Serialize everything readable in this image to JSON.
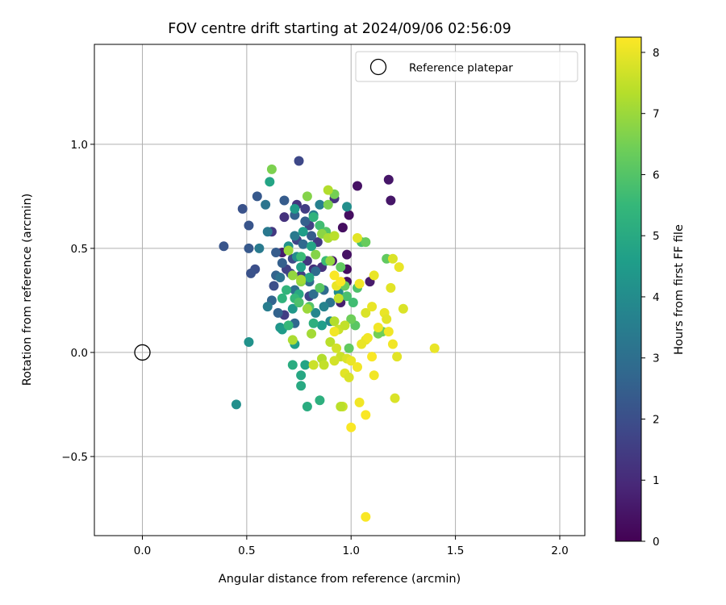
{
  "chart_data": {
    "type": "scatter",
    "title": "FOV centre drift starting at 2024/09/06 02:56:09",
    "xlabel": "Angular distance from reference (arcmin)",
    "ylabel": "Rotation from reference (arcmin)",
    "xlim": [
      -0.23,
      2.12
    ],
    "ylim": [
      -0.88,
      1.48
    ],
    "xticks": [
      "0.0",
      "0.5",
      "1.0",
      "1.5",
      "2.0"
    ],
    "xtick_values": [
      0.0,
      0.5,
      1.0,
      1.5,
      2.0
    ],
    "yticks": [
      "−0.5",
      "0.0",
      "0.5",
      "1.0"
    ],
    "ytick_values": [
      -0.5,
      0.0,
      0.5,
      1.0
    ],
    "grid": true,
    "legend": {
      "position": "top-right",
      "entries": [
        "Reference platepar"
      ]
    },
    "reference_point": {
      "x": 0.0,
      "y": 0.0,
      "marker": "open-circle"
    },
    "colorbar": {
      "label": "Hours from first FF file",
      "colormap": "viridis",
      "range": [
        0,
        8.25
      ],
      "ticks": [
        "0",
        "1",
        "2",
        "3",
        "4",
        "5",
        "6",
        "7",
        "8"
      ],
      "tick_values": [
        0,
        1,
        2,
        3,
        4,
        5,
        6,
        7,
        8
      ]
    },
    "point_fields": [
      "x",
      "y",
      "hours"
    ],
    "points": [
      [
        0.96,
        0.6,
        0.3
      ],
      [
        1.03,
        0.8,
        0.4
      ],
      [
        0.99,
        0.66,
        0.3
      ],
      [
        1.18,
        0.83,
        0.5
      ],
      [
        1.19,
        0.73,
        0.5
      ],
      [
        0.98,
        0.47,
        0.4
      ],
      [
        0.98,
        0.4,
        0.3
      ],
      [
        0.98,
        0.34,
        0.4
      ],
      [
        1.09,
        0.34,
        0.6
      ],
      [
        0.67,
        0.48,
        0.6
      ],
      [
        0.95,
        0.24,
        0.7
      ],
      [
        0.91,
        0.44,
        0.6
      ],
      [
        0.68,
        0.65,
        1.2
      ],
      [
        0.62,
        0.58,
        1.4
      ],
      [
        0.74,
        0.71,
        1.3
      ],
      [
        0.78,
        0.69,
        1.5
      ],
      [
        0.92,
        0.74,
        1.2
      ],
      [
        0.82,
        0.4,
        1.1
      ],
      [
        0.79,
        0.44,
        1.3
      ],
      [
        0.86,
        0.41,
        1.2
      ],
      [
        0.75,
        0.92,
        1.8
      ],
      [
        0.8,
        0.61,
        1.6
      ],
      [
        0.84,
        0.53,
        1.4
      ],
      [
        0.76,
        0.37,
        1.6
      ],
      [
        0.8,
        0.27,
        1.7
      ],
      [
        0.71,
        0.38,
        1.8
      ],
      [
        0.72,
        0.45,
        1.9
      ],
      [
        0.74,
        0.54,
        1.7
      ],
      [
        0.69,
        0.4,
        1.6
      ],
      [
        0.68,
        0.18,
        1.5
      ],
      [
        0.63,
        0.32,
        2.0
      ],
      [
        0.54,
        0.4,
        2.0
      ],
      [
        0.52,
        0.38,
        2.1
      ],
      [
        0.48,
        0.69,
        2.1
      ],
      [
        0.51,
        0.61,
        2.2
      ],
      [
        0.39,
        0.51,
        2.2
      ],
      [
        0.51,
        0.5,
        2.3
      ],
      [
        0.55,
        0.75,
        2.3
      ],
      [
        0.68,
        0.73,
        2.4
      ],
      [
        0.64,
        0.48,
        2.4
      ],
      [
        0.67,
        0.43,
        2.5
      ],
      [
        0.64,
        0.37,
        2.6
      ],
      [
        0.65,
        0.19,
        2.6
      ],
      [
        0.62,
        0.25,
        2.7
      ],
      [
        0.73,
        0.14,
        2.8
      ],
      [
        0.78,
        0.63,
        2.5
      ],
      [
        0.81,
        0.56,
        2.4
      ],
      [
        0.73,
        0.66,
        2.6
      ],
      [
        0.77,
        0.52,
        2.8
      ],
      [
        0.83,
        0.39,
        2.9
      ],
      [
        0.8,
        0.34,
        2.9
      ],
      [
        0.73,
        0.3,
        3.0
      ],
      [
        0.75,
        0.24,
        3.1
      ],
      [
        0.82,
        0.28,
        3.0
      ],
      [
        0.87,
        0.3,
        2.9
      ],
      [
        0.9,
        0.24,
        3.2
      ],
      [
        0.66,
        0.36,
        3.1
      ],
      [
        0.6,
        0.58,
        3.3
      ],
      [
        0.59,
        0.71,
        3.2
      ],
      [
        0.56,
        0.5,
        3.4
      ],
      [
        0.6,
        0.22,
        3.5
      ],
      [
        0.73,
        0.56,
        3.4
      ],
      [
        0.85,
        0.71,
        3.6
      ],
      [
        0.82,
        0.66,
        3.5
      ],
      [
        0.87,
        0.22,
        3.7
      ],
      [
        0.83,
        0.19,
        3.8
      ],
      [
        0.9,
        0.15,
        3.9
      ],
      [
        0.94,
        0.29,
        4.0
      ],
      [
        0.98,
        0.7,
        4.1
      ],
      [
        0.74,
        0.46,
        4.0
      ],
      [
        0.7,
        0.51,
        4.2
      ],
      [
        0.72,
        0.21,
        4.4
      ],
      [
        0.66,
        0.12,
        4.3
      ],
      [
        0.67,
        0.11,
        4.5
      ],
      [
        0.73,
        0.04,
        4.6
      ],
      [
        0.51,
        0.05,
        4.2
      ],
      [
        0.45,
        -0.25,
        4.1
      ],
      [
        0.73,
        0.69,
        4.5
      ],
      [
        0.77,
        0.58,
        4.6
      ],
      [
        0.76,
        0.41,
        4.7
      ],
      [
        0.81,
        0.51,
        4.8
      ],
      [
        0.8,
        0.36,
        4.9
      ],
      [
        0.86,
        0.13,
        4.6
      ],
      [
        0.78,
        -0.06,
        4.8
      ],
      [
        0.76,
        -0.11,
        4.9
      ],
      [
        0.72,
        -0.06,
        5.1
      ],
      [
        0.76,
        -0.16,
        5.0
      ],
      [
        0.79,
        -0.26,
        5.1
      ],
      [
        0.85,
        -0.23,
        5.2
      ],
      [
        0.61,
        0.82,
        4.8
      ],
      [
        0.75,
        0.28,
        5.0
      ],
      [
        0.82,
        0.14,
        5.2
      ],
      [
        0.82,
        0.65,
        5.3
      ],
      [
        0.67,
        0.26,
        5.3
      ],
      [
        0.69,
        0.3,
        5.4
      ],
      [
        0.7,
        0.13,
        5.5
      ],
      [
        0.73,
        0.26,
        5.5
      ],
      [
        0.76,
        0.46,
        5.6
      ],
      [
        0.85,
        0.61,
        5.7
      ],
      [
        0.88,
        0.44,
        5.6
      ],
      [
        0.98,
        0.27,
        5.8
      ],
      [
        1.01,
        0.24,
        5.7
      ],
      [
        1.03,
        0.31,
        5.9
      ],
      [
        1.05,
        0.53,
        5.8
      ],
      [
        0.75,
        0.24,
        5.9
      ],
      [
        0.8,
        0.22,
        6.0
      ],
      [
        0.85,
        0.31,
        6.1
      ],
      [
        0.88,
        0.58,
        6.0
      ],
      [
        0.95,
        0.41,
        6.2
      ],
      [
        0.97,
        0.32,
        6.3
      ],
      [
        1.02,
        0.13,
        6.1
      ],
      [
        0.99,
        0.02,
        6.2
      ],
      [
        1.0,
        0.16,
        6.4
      ],
      [
        1.07,
        0.53,
        6.3
      ],
      [
        1.13,
        0.09,
        6.5
      ],
      [
        1.15,
        0.1,
        6.4
      ],
      [
        1.17,
        0.45,
        6.2
      ],
      [
        0.62,
        0.88,
        6.6
      ],
      [
        0.79,
        0.75,
        6.7
      ],
      [
        0.89,
        0.71,
        6.6
      ],
      [
        0.92,
        0.76,
        6.5
      ],
      [
        0.86,
        0.57,
        6.8
      ],
      [
        0.9,
        0.44,
        6.9
      ],
      [
        0.83,
        0.47,
        6.7
      ],
      [
        0.76,
        0.34,
        6.8
      ],
      [
        0.72,
        0.37,
        6.9
      ],
      [
        0.7,
        0.49,
        7.0
      ],
      [
        0.79,
        0.21,
        7.0
      ],
      [
        0.81,
        0.09,
        7.1
      ],
      [
        0.72,
        0.06,
        7.2
      ],
      [
        0.76,
        0.35,
        7.1
      ],
      [
        0.89,
        0.78,
        7.3
      ],
      [
        0.89,
        0.55,
        7.2
      ],
      [
        0.92,
        0.56,
        7.4
      ],
      [
        0.94,
        0.26,
        7.5
      ],
      [
        0.92,
        0.15,
        7.3
      ],
      [
        0.94,
        0.11,
        7.6
      ],
      [
        0.97,
        0.13,
        7.5
      ],
      [
        0.9,
        0.05,
        7.4
      ],
      [
        0.93,
        0.02,
        7.7
      ],
      [
        0.95,
        -0.02,
        7.6
      ],
      [
        0.98,
        -0.03,
        7.8
      ],
      [
        0.92,
        -0.04,
        7.7
      ],
      [
        0.97,
        -0.1,
        7.9
      ],
      [
        0.99,
        -0.12,
        7.8
      ],
      [
        0.96,
        -0.26,
        7.6
      ],
      [
        0.95,
        -0.26,
        7.4
      ],
      [
        0.86,
        -0.03,
        7.3
      ],
      [
        0.87,
        -0.06,
        7.5
      ],
      [
        0.82,
        -0.06,
        7.6
      ],
      [
        1.03,
        0.55,
        7.9
      ],
      [
        1.07,
        0.19,
        7.8
      ],
      [
        1.1,
        0.22,
        8.0
      ],
      [
        1.11,
        0.37,
        8.0
      ],
      [
        1.13,
        0.12,
        8.1
      ],
      [
        1.16,
        0.19,
        8.0
      ],
      [
        1.17,
        0.16,
        7.9
      ],
      [
        1.18,
        0.1,
        8.1
      ],
      [
        1.19,
        0.31,
        7.9
      ],
      [
        1.2,
        0.45,
        7.8
      ],
      [
        1.23,
        0.41,
        8.0
      ],
      [
        1.25,
        0.21,
        7.8
      ],
      [
        1.2,
        0.04,
        8.1
      ],
      [
        1.22,
        -0.02,
        7.9
      ],
      [
        1.21,
        -0.22,
        7.8
      ],
      [
        1.4,
        0.02,
        8.0
      ],
      [
        1.07,
        0.06,
        8.0
      ],
      [
        1.08,
        0.07,
        8.1
      ],
      [
        1.1,
        -0.02,
        8.2
      ],
      [
        1.11,
        -0.11,
        8.1
      ],
      [
        1.05,
        0.04,
        8.0
      ],
      [
        1.04,
        -0.24,
        8.1
      ],
      [
        1.07,
        -0.3,
        8.2
      ],
      [
        1.0,
        -0.04,
        8.0
      ],
      [
        1.03,
        -0.07,
        8.1
      ],
      [
        1.0,
        -0.36,
        8.2
      ],
      [
        1.07,
        -0.79,
        8.2
      ],
      [
        0.92,
        0.1,
        8.1
      ],
      [
        0.93,
        0.32,
        8.0
      ],
      [
        0.92,
        0.37,
        8.2
      ],
      [
        0.95,
        0.34,
        8.2
      ],
      [
        1.04,
        0.33,
        8.1
      ]
    ]
  }
}
